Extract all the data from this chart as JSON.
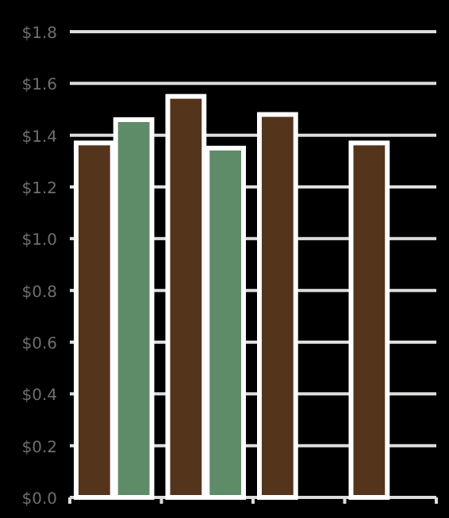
{
  "chart_data": {
    "type": "bar",
    "categories": [
      null,
      null,
      null,
      null
    ],
    "series": [
      {
        "color": "#55341c",
        "values": [
          1.37,
          1.55,
          1.48,
          1.37
        ]
      },
      {
        "color": "#5f8c68",
        "values": [
          1.46,
          1.35,
          null,
          null
        ]
      }
    ],
    "ylim": [
      0,
      1.8
    ],
    "yticks": [
      {
        "value": 0,
        "label": "$0.0"
      },
      {
        "value": 0.2,
        "label": "$0.2"
      },
      {
        "value": 0.4,
        "label": "$0.4"
      },
      {
        "value": 0.6,
        "label": "$0.6"
      },
      {
        "value": 0.8,
        "label": "$0.8"
      },
      {
        "value": 1,
        "label": "$1.0"
      },
      {
        "value": 1.2,
        "label": "$1.2"
      },
      {
        "value": 1.4,
        "label": "$1.4"
      },
      {
        "value": 1.6,
        "label": "$1.6"
      },
      {
        "value": 1.8,
        "label": "$1.8"
      }
    ],
    "grid": "y"
  }
}
